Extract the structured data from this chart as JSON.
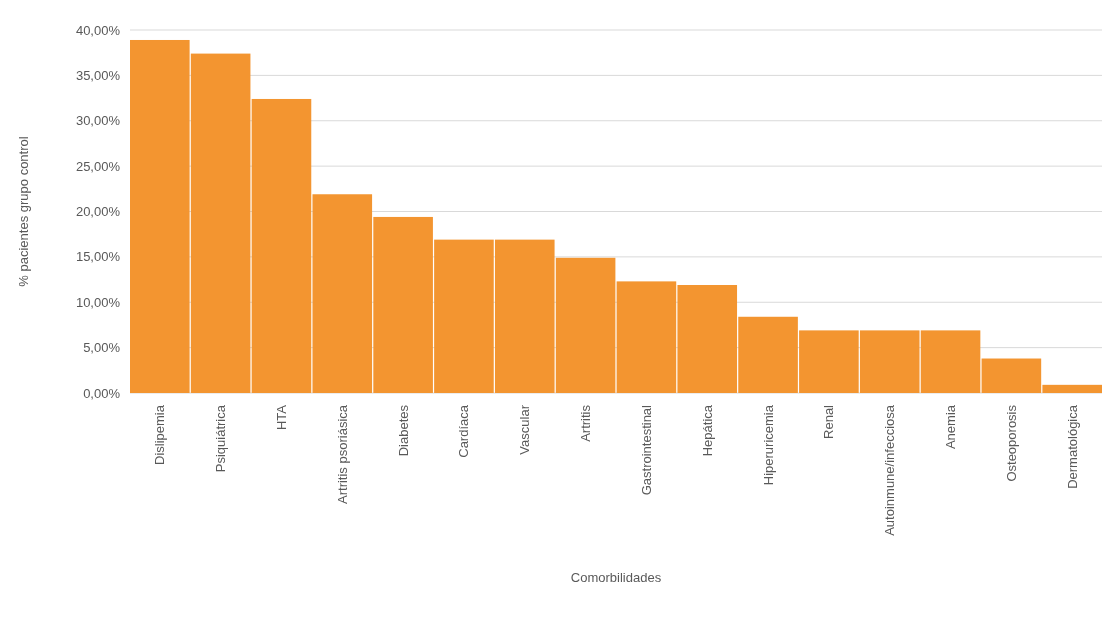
{
  "chart_data": {
    "type": "bar",
    "xlabel": "Comorbilidades",
    "ylabel": "% pacientes grupo control",
    "categories": [
      "Dislipemia",
      "Psiquiátrica",
      "HTA",
      "Artritis psoriásica",
      "Diabetes",
      "Cardíaca",
      "Vascular",
      "Artritis",
      "Gastrointestinal",
      "Hepática",
      "Hiperuricemia",
      "Renal",
      "Autoinmune/infecciosa",
      "Anemia",
      "Osteoporosis",
      "Dermatológica"
    ],
    "values": [
      38.9,
      37.4,
      32.4,
      21.9,
      19.4,
      16.9,
      16.9,
      14.9,
      12.3,
      11.9,
      8.4,
      6.9,
      6.9,
      6.9,
      3.8,
      0.9
    ],
    "color": "#f39530",
    "ylim": [
      0,
      40
    ],
    "yticks": [
      {
        "value": 0,
        "label": "0,00%"
      },
      {
        "value": 5,
        "label": "5,00%"
      },
      {
        "value": 10,
        "label": "10,00%"
      },
      {
        "value": 15,
        "label": "15,00%"
      },
      {
        "value": 20,
        "label": "20,00%"
      },
      {
        "value": 25,
        "label": "25,00%"
      },
      {
        "value": 30,
        "label": "30,00%"
      },
      {
        "value": 35,
        "label": "35,00%"
      },
      {
        "value": 40,
        "label": "40,00%"
      }
    ],
    "grid": "y"
  }
}
